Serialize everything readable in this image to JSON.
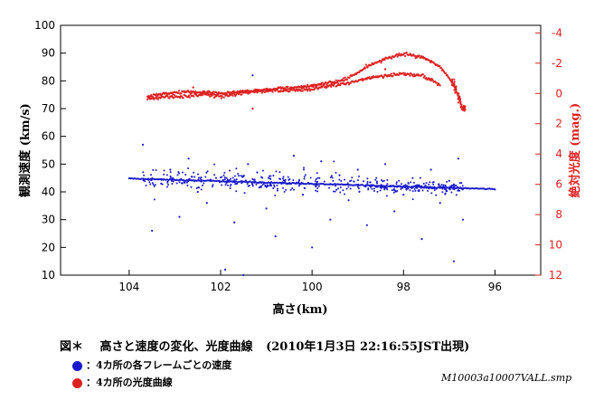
{
  "caption": {
    "label": "図＊",
    "text": "高さと速度の変化、光度曲線",
    "datetime": "(2010年1月3日 22:16:55JST出現)"
  },
  "legend": [
    {
      "text": "：4カ所の各フレームごとの速度",
      "color": "#1a1acc"
    },
    {
      "text": "：4カ所の光度曲線",
      "color": "#dd2222"
    }
  ],
  "filename": "M10003a10007VALL.smp",
  "chart_data": {
    "type": "scatter",
    "xlabel": "高さ(km)",
    "ylabel_left": "観測速度 (km/s)",
    "ylabel_right": "絶対光度 (mag.)",
    "x_ticks": [
      "104",
      "102",
      "100",
      "98",
      "96"
    ],
    "y_left_ticks": [
      "10",
      "20",
      "30",
      "40",
      "50",
      "60",
      "70",
      "80",
      "90",
      "100"
    ],
    "y_right_ticks": [
      "-4",
      "-2",
      "0",
      "2",
      "4",
      "6",
      "8",
      "10",
      "12"
    ],
    "x_range": [
      105.5,
      95.0
    ],
    "y_left_range": [
      10,
      100
    ],
    "y_right_range": [
      12,
      -4.5
    ],
    "x_reversed": true,
    "y_right_reversed": true,
    "series": [
      {
        "axis": "left",
        "color": "#1a1acc",
        "fit_line": {
          "x": [
            104.0,
            96.0
          ],
          "y": [
            44.8,
            41.0
          ]
        },
        "points": [
          [
            103.7,
            57
          ],
          [
            103.5,
            26
          ],
          [
            103.3,
            43
          ],
          [
            103.1,
            48
          ],
          [
            102.9,
            31
          ],
          [
            102.7,
            52
          ],
          [
            102.5,
            40
          ],
          [
            102.3,
            36
          ],
          [
            102.1,
            45
          ],
          [
            101.9,
            12
          ],
          [
            101.7,
            29
          ],
          [
            101.5,
            10
          ],
          [
            101.4,
            50
          ],
          [
            101.3,
            82
          ],
          [
            101.2,
            47
          ],
          [
            101.0,
            34
          ],
          [
            100.8,
            24
          ],
          [
            100.6,
            44
          ],
          [
            100.4,
            53
          ],
          [
            100.2,
            39
          ],
          [
            100.0,
            20
          ],
          [
            99.8,
            51
          ],
          [
            99.6,
            30
          ],
          [
            99.4,
            46
          ],
          [
            99.2,
            37
          ],
          [
            99.0,
            48
          ],
          [
            98.8,
            28
          ],
          [
            98.6,
            42
          ],
          [
            98.4,
            50
          ],
          [
            98.2,
            33
          ],
          [
            98.0,
            39
          ],
          [
            97.8,
            45
          ],
          [
            97.6,
            23
          ],
          [
            97.4,
            48
          ],
          [
            97.2,
            36
          ],
          [
            97.0,
            44
          ],
          [
            96.9,
            15
          ],
          [
            96.8,
            52
          ],
          [
            96.7,
            30
          ]
        ]
      },
      {
        "axis": "right",
        "color": "#dd2222",
        "upper_curve": {
          "x": [
            103.6,
            103.2,
            102.8,
            102.4,
            102.0,
            101.6,
            101.2,
            100.8,
            100.4,
            100.0,
            99.6,
            99.2,
            98.8,
            98.4,
            98.0,
            97.6,
            97.2,
            96.9,
            96.7
          ],
          "y": [
            0.2,
            0.0,
            -0.1,
            -0.1,
            0.0,
            -0.1,
            -0.2,
            -0.3,
            -0.4,
            -0.5,
            -0.7,
            -1.0,
            -1.8,
            -2.3,
            -2.6,
            -2.4,
            -1.8,
            -0.6,
            1.0
          ]
        },
        "lower_curve": {
          "x": [
            103.6,
            103.2,
            102.8,
            102.4,
            102.0,
            101.6,
            101.2,
            100.8,
            100.4,
            100.0,
            99.6,
            99.2,
            98.8,
            98.4,
            98.0,
            97.6,
            97.2
          ],
          "y": [
            0.4,
            0.2,
            0.2,
            0.1,
            0.2,
            0.0,
            -0.1,
            -0.2,
            -0.2,
            -0.3,
            -0.5,
            -0.7,
            -1.0,
            -1.2,
            -1.3,
            -1.2,
            -0.6
          ]
        },
        "outliers": [
          [
            101.3,
            1.0
          ],
          [
            102.6,
            -0.4
          ],
          [
            98.4,
            -1.6
          ]
        ]
      }
    ]
  }
}
